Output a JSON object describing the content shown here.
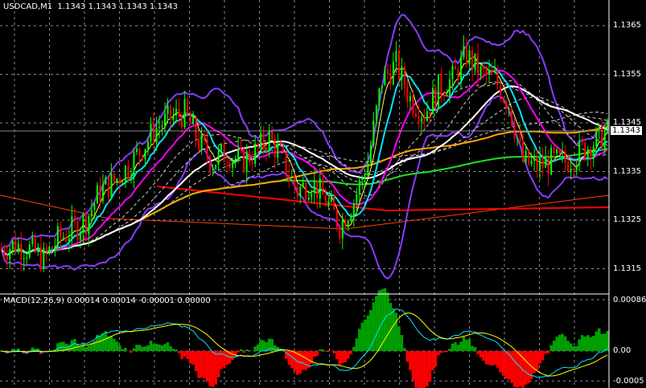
{
  "header": {
    "symbol": "USDCAD,M1",
    "open": "1.1343",
    "high": "1.1343",
    "low": "1.1343",
    "close": "1.1343"
  },
  "price_axis": {
    "ticks": [
      "1.1365",
      "1.1355",
      "1.1345",
      "1.1335",
      "1.1325",
      "1.1315"
    ],
    "current": "1.1343"
  },
  "macd_panel": {
    "label": "MACD(12,26,9) 0.00014 0.00014 -0.00001 0.00000",
    "ticks": [
      "0.00086",
      "0.00",
      "-0.0005"
    ]
  },
  "colors": {
    "bull": "#00ff00",
    "bear": "#ff0000",
    "grid": "#8a8aa0",
    "bands": "#8a3cff",
    "macd": "#00e5ff",
    "signal": "#ffff00"
  },
  "chart_data": {
    "type": "candlestick",
    "ylim": [
      1.131,
      1.137
    ],
    "close_path": [
      1.1319,
      1.132,
      1.1319,
      1.1317,
      1.1321,
      1.1323,
      1.1325,
      1.1331,
      1.1333,
      1.1336,
      1.134,
      1.1344,
      1.1346,
      1.1347,
      1.1341,
      1.1337,
      1.1339,
      1.1337,
      1.1339,
      1.1342,
      1.1337,
      1.1331,
      1.1333,
      1.1329,
      1.1324,
      1.1329,
      1.1337,
      1.1354,
      1.1357,
      1.135,
      1.1347,
      1.1352,
      1.1354,
      1.1359,
      1.1355,
      1.1354,
      1.1349,
      1.1337,
      1.1336,
      1.1337,
      1.1337,
      1.1339,
      1.1341,
      1.1343
    ],
    "indicators": [
      "MA cyan",
      "MA magenta",
      "MA white",
      "MA orange",
      "MA green",
      "Bollinger Bands",
      "MACD(12,26,9)"
    ]
  }
}
